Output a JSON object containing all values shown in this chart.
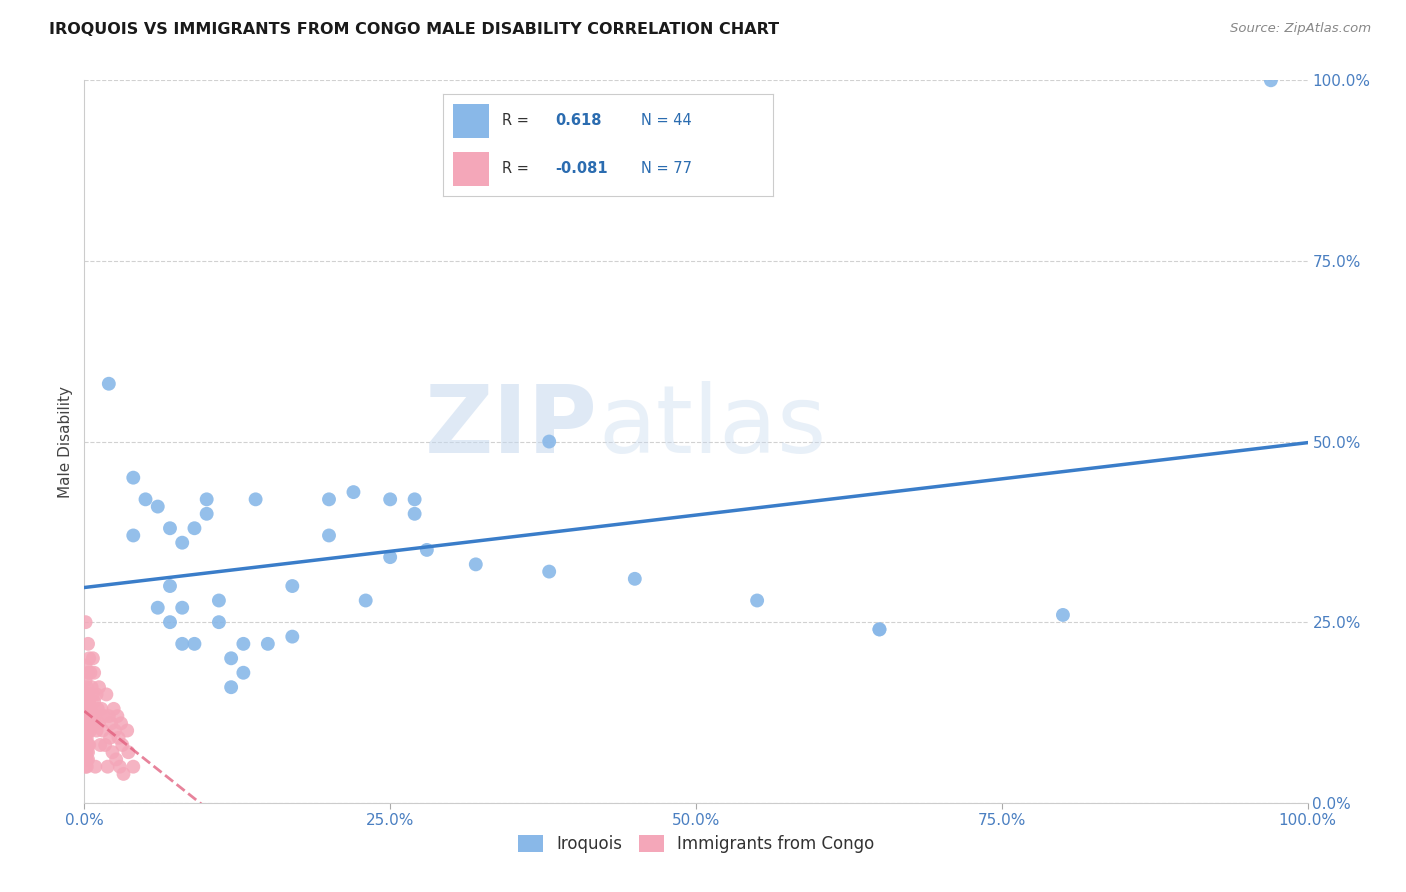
{
  "title": "IROQUOIS VS IMMIGRANTS FROM CONGO MALE DISABILITY CORRELATION CHART",
  "source": "Source: ZipAtlas.com",
  "ylabel": "Male Disability",
  "xlim": [
    0,
    1.0
  ],
  "ylim": [
    0,
    1.0
  ],
  "xtick_labels": [
    "0.0%",
    "25.0%",
    "50.0%",
    "75.0%",
    "100.0%"
  ],
  "xtick_vals": [
    0,
    0.25,
    0.5,
    0.75,
    1.0
  ],
  "ytick_labels_right": [
    "0.0%",
    "25.0%",
    "50.0%",
    "75.0%",
    "100.0%"
  ],
  "ytick_vals": [
    0.0,
    0.25,
    0.5,
    0.75,
    1.0
  ],
  "iroquois_color": "#89b8e8",
  "congo_color": "#f4a7b9",
  "iroquois_line_color": "#3a7dc9",
  "congo_line_color": "#e05a7a",
  "r_iroquois": "0.618",
  "n_iroquois": "44",
  "r_congo": "-0.081",
  "n_congo": "77",
  "watermark_zip": "ZIP",
  "watermark_atlas": "atlas",
  "iroquois_scatter": [
    [
      0.02,
      0.58
    ],
    [
      0.04,
      0.45
    ],
    [
      0.04,
      0.37
    ],
    [
      0.05,
      0.42
    ],
    [
      0.06,
      0.41
    ],
    [
      0.06,
      0.27
    ],
    [
      0.07,
      0.3
    ],
    [
      0.07,
      0.38
    ],
    [
      0.07,
      0.25
    ],
    [
      0.08,
      0.27
    ],
    [
      0.08,
      0.22
    ],
    [
      0.08,
      0.36
    ],
    [
      0.09,
      0.38
    ],
    [
      0.09,
      0.22
    ],
    [
      0.1,
      0.4
    ],
    [
      0.1,
      0.42
    ],
    [
      0.11,
      0.28
    ],
    [
      0.11,
      0.25
    ],
    [
      0.12,
      0.2
    ],
    [
      0.12,
      0.16
    ],
    [
      0.13,
      0.22
    ],
    [
      0.13,
      0.18
    ],
    [
      0.14,
      0.42
    ],
    [
      0.15,
      0.22
    ],
    [
      0.17,
      0.3
    ],
    [
      0.17,
      0.23
    ],
    [
      0.2,
      0.42
    ],
    [
      0.2,
      0.37
    ],
    [
      0.22,
      0.43
    ],
    [
      0.23,
      0.28
    ],
    [
      0.25,
      0.42
    ],
    [
      0.25,
      0.34
    ],
    [
      0.27,
      0.42
    ],
    [
      0.27,
      0.4
    ],
    [
      0.28,
      0.35
    ],
    [
      0.32,
      0.33
    ],
    [
      0.38,
      0.32
    ],
    [
      0.38,
      0.5
    ],
    [
      0.45,
      0.31
    ],
    [
      0.55,
      0.28
    ],
    [
      0.65,
      0.24
    ],
    [
      0.65,
      0.24
    ],
    [
      0.8,
      0.26
    ],
    [
      0.97,
      1.0
    ]
  ],
  "congo_scatter": [
    [
      0.001,
      0.25
    ],
    [
      0.001,
      0.19
    ],
    [
      0.001,
      0.17
    ],
    [
      0.001,
      0.15
    ],
    [
      0.001,
      0.13
    ],
    [
      0.001,
      0.12
    ],
    [
      0.001,
      0.11
    ],
    [
      0.001,
      0.1
    ],
    [
      0.001,
      0.09
    ],
    [
      0.001,
      0.08
    ],
    [
      0.001,
      0.07
    ],
    [
      0.001,
      0.06
    ],
    [
      0.001,
      0.05
    ],
    [
      0.002,
      0.16
    ],
    [
      0.002,
      0.15
    ],
    [
      0.002,
      0.14
    ],
    [
      0.002,
      0.13
    ],
    [
      0.002,
      0.12
    ],
    [
      0.002,
      0.11
    ],
    [
      0.002,
      0.1
    ],
    [
      0.002,
      0.09
    ],
    [
      0.002,
      0.08
    ],
    [
      0.002,
      0.07
    ],
    [
      0.002,
      0.06
    ],
    [
      0.002,
      0.05
    ],
    [
      0.003,
      0.22
    ],
    [
      0.003,
      0.18
    ],
    [
      0.003,
      0.15
    ],
    [
      0.003,
      0.12
    ],
    [
      0.003,
      0.1
    ],
    [
      0.003,
      0.08
    ],
    [
      0.003,
      0.07
    ],
    [
      0.003,
      0.06
    ],
    [
      0.004,
      0.2
    ],
    [
      0.004,
      0.14
    ],
    [
      0.004,
      0.11
    ],
    [
      0.004,
      0.08
    ],
    [
      0.005,
      0.18
    ],
    [
      0.005,
      0.13
    ],
    [
      0.005,
      0.1
    ],
    [
      0.006,
      0.16
    ],
    [
      0.006,
      0.12
    ],
    [
      0.007,
      0.2
    ],
    [
      0.007,
      0.15
    ],
    [
      0.007,
      0.11
    ],
    [
      0.008,
      0.18
    ],
    [
      0.008,
      0.14
    ],
    [
      0.009,
      0.12
    ],
    [
      0.009,
      0.05
    ],
    [
      0.01,
      0.15
    ],
    [
      0.01,
      0.1
    ],
    [
      0.011,
      0.13
    ],
    [
      0.012,
      0.16
    ],
    [
      0.012,
      0.11
    ],
    [
      0.013,
      0.08
    ],
    [
      0.014,
      0.13
    ],
    [
      0.015,
      0.1
    ],
    [
      0.016,
      0.12
    ],
    [
      0.017,
      0.08
    ],
    [
      0.018,
      0.15
    ],
    [
      0.019,
      0.05
    ],
    [
      0.02,
      0.12
    ],
    [
      0.021,
      0.09
    ],
    [
      0.022,
      0.11
    ],
    [
      0.023,
      0.07
    ],
    [
      0.024,
      0.13
    ],
    [
      0.025,
      0.1
    ],
    [
      0.026,
      0.06
    ],
    [
      0.027,
      0.12
    ],
    [
      0.028,
      0.09
    ],
    [
      0.029,
      0.05
    ],
    [
      0.03,
      0.11
    ],
    [
      0.031,
      0.08
    ],
    [
      0.032,
      0.04
    ],
    [
      0.035,
      0.1
    ],
    [
      0.036,
      0.07
    ],
    [
      0.04,
      0.05
    ]
  ]
}
